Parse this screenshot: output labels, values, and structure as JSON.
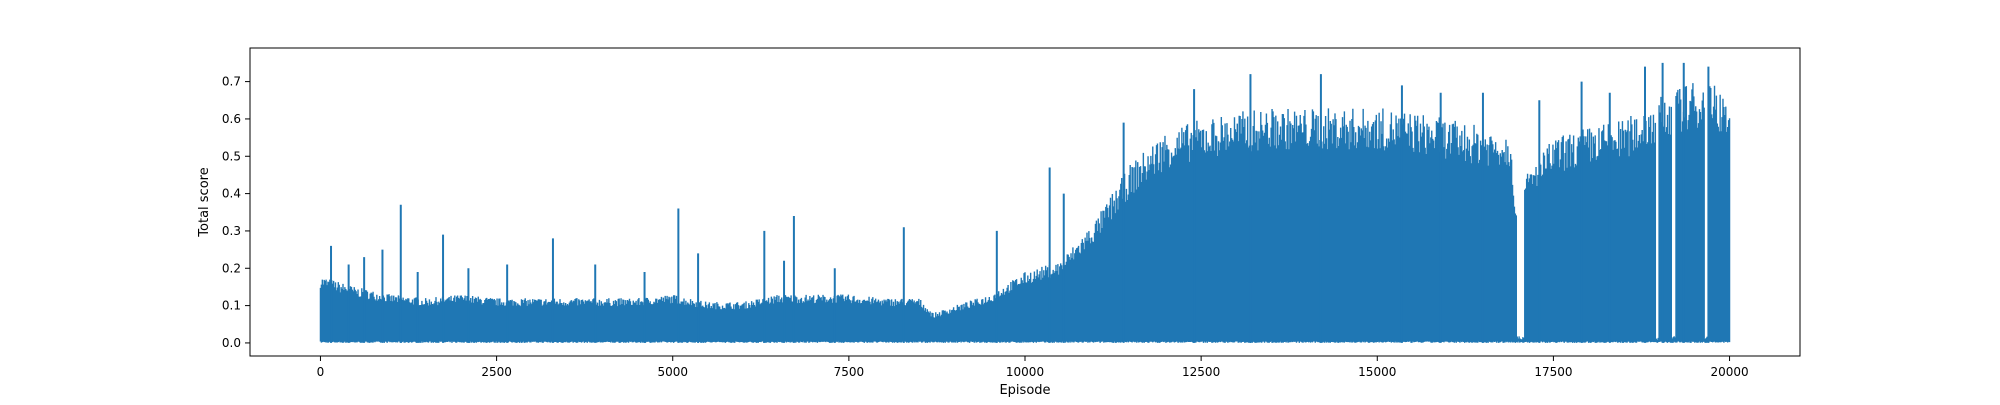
{
  "chart_data": {
    "type": "line",
    "title": "",
    "xlabel": "Episode",
    "ylabel": "Total score",
    "xlim": [
      -1000,
      21000
    ],
    "ylim": [
      -0.035,
      0.79
    ],
    "x_ticks": [
      0,
      2500,
      5000,
      7500,
      10000,
      12500,
      15000,
      17500,
      20000
    ],
    "x_tick_labels": [
      "0",
      "2500",
      "5000",
      "7500",
      "10000",
      "12500",
      "15000",
      "17500",
      "20000"
    ],
    "y_ticks": [
      0.0,
      0.1,
      0.2,
      0.3,
      0.4,
      0.5,
      0.6,
      0.7
    ],
    "y_tick_labels": [
      "0.0",
      "0.1",
      "0.2",
      "0.3",
      "0.4",
      "0.5",
      "0.6",
      "0.7"
    ],
    "grid": false,
    "legend": "none",
    "colors": {
      "series": "#1f77b4",
      "axes": "#000000",
      "background": "#ffffff"
    },
    "series": [
      {
        "episodes": 20000,
        "envelope_upper": {
          "x": [
            0,
            500,
            1000,
            1500,
            2000,
            2500,
            3000,
            3500,
            4000,
            4500,
            5000,
            5500,
            6000,
            6500,
            7000,
            7500,
            8000,
            8500,
            8700,
            9000,
            9500,
            10000,
            10500,
            11000,
            11500,
            12000,
            12500,
            13000,
            13500,
            14000,
            14500,
            15000,
            15500,
            16000,
            16500,
            16900,
            17000,
            17100,
            17500,
            18000,
            18500,
            18700,
            19000,
            19200,
            19500,
            19800,
            20000
          ],
          "y": [
            0.18,
            0.15,
            0.13,
            0.12,
            0.13,
            0.12,
            0.12,
            0.12,
            0.12,
            0.12,
            0.13,
            0.11,
            0.11,
            0.13,
            0.13,
            0.13,
            0.12,
            0.12,
            0.08,
            0.1,
            0.13,
            0.19,
            0.22,
            0.33,
            0.48,
            0.57,
            0.6,
            0.62,
            0.63,
            0.63,
            0.63,
            0.63,
            0.62,
            0.6,
            0.58,
            0.57,
            0.28,
            0.45,
            0.55,
            0.58,
            0.6,
            0.62,
            0.66,
            0.68,
            0.7,
            0.7,
            0.65
          ]
        },
        "envelope_lower": {
          "x": [
            0,
            20000
          ],
          "y": [
            0.0,
            0.0
          ]
        },
        "spikes": [
          {
            "x": 150,
            "y": 0.26
          },
          {
            "x": 400,
            "y": 0.21
          },
          {
            "x": 620,
            "y": 0.23
          },
          {
            "x": 880,
            "y": 0.25
          },
          {
            "x": 1140,
            "y": 0.37
          },
          {
            "x": 1380,
            "y": 0.19
          },
          {
            "x": 1740,
            "y": 0.29
          },
          {
            "x": 2100,
            "y": 0.2
          },
          {
            "x": 2650,
            "y": 0.21
          },
          {
            "x": 3300,
            "y": 0.28
          },
          {
            "x": 3900,
            "y": 0.21
          },
          {
            "x": 4600,
            "y": 0.19
          },
          {
            "x": 5080,
            "y": 0.36
          },
          {
            "x": 5360,
            "y": 0.24
          },
          {
            "x": 6300,
            "y": 0.3
          },
          {
            "x": 6580,
            "y": 0.22
          },
          {
            "x": 6720,
            "y": 0.34
          },
          {
            "x": 7300,
            "y": 0.2
          },
          {
            "x": 8280,
            "y": 0.31
          },
          {
            "x": 9600,
            "y": 0.3
          },
          {
            "x": 10350,
            "y": 0.47
          },
          {
            "x": 10550,
            "y": 0.4
          },
          {
            "x": 11400,
            "y": 0.59
          },
          {
            "x": 12400,
            "y": 0.68
          },
          {
            "x": 13200,
            "y": 0.72
          },
          {
            "x": 14200,
            "y": 0.72
          },
          {
            "x": 15350,
            "y": 0.69
          },
          {
            "x": 15900,
            "y": 0.67
          },
          {
            "x": 16500,
            "y": 0.67
          },
          {
            "x": 17300,
            "y": 0.65
          },
          {
            "x": 17900,
            "y": 0.7
          },
          {
            "x": 18300,
            "y": 0.67
          },
          {
            "x": 18800,
            "y": 0.74
          },
          {
            "x": 19050,
            "y": 0.75
          },
          {
            "x": 19350,
            "y": 0.75
          },
          {
            "x": 19700,
            "y": 0.74
          }
        ],
        "dropouts": [
          {
            "x0": 16980,
            "x1": 17080
          },
          {
            "x0": 18950,
            "x1": 18990
          },
          {
            "x0": 19180,
            "x1": 19230
          },
          {
            "x0": 19650,
            "x1": 19700
          }
        ]
      }
    ]
  }
}
